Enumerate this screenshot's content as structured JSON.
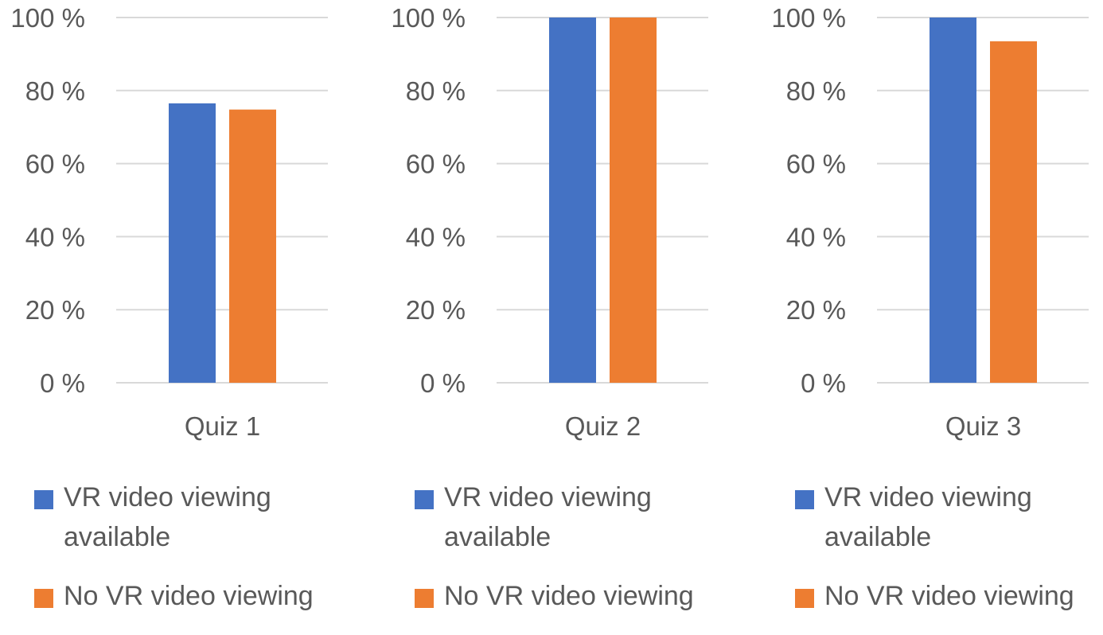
{
  "chart_data": [
    {
      "type": "bar",
      "categories": [
        "Quiz 1"
      ],
      "series": [
        {
          "name": "VR video viewing available",
          "values": [
            76.5
          ]
        },
        {
          "name": "No VR video viewing",
          "values": [
            74.8
          ]
        }
      ],
      "yticks": [
        "0 %",
        "20 %",
        "40 %",
        "60 %",
        "80 %",
        "100 %"
      ],
      "ylim": [
        0,
        100
      ],
      "grid": true,
      "legend": "bottom"
    },
    {
      "type": "bar",
      "categories": [
        "Quiz 2"
      ],
      "series": [
        {
          "name": "VR video viewing available",
          "values": [
            100
          ]
        },
        {
          "name": "No VR video viewing",
          "values": [
            100
          ]
        }
      ],
      "yticks": [
        "0 %",
        "20 %",
        "40 %",
        "60 %",
        "80 %",
        "100 %"
      ],
      "ylim": [
        0,
        100
      ],
      "grid": true,
      "legend": "bottom"
    },
    {
      "type": "bar",
      "categories": [
        "Quiz 3"
      ],
      "series": [
        {
          "name": "VR video viewing available",
          "values": [
            100
          ]
        },
        {
          "name": "No VR video viewing",
          "values": [
            93.5
          ]
        }
      ],
      "yticks": [
        "0 %",
        "20 %",
        "40 %",
        "60 %",
        "80 %",
        "100 %"
      ],
      "ylim": [
        0,
        100
      ],
      "grid": true,
      "legend": "bottom"
    }
  ],
  "colors": {
    "series": [
      "#4472C4",
      "#ED7D31"
    ],
    "grid": "#D9D9D9",
    "text": "#595959"
  }
}
